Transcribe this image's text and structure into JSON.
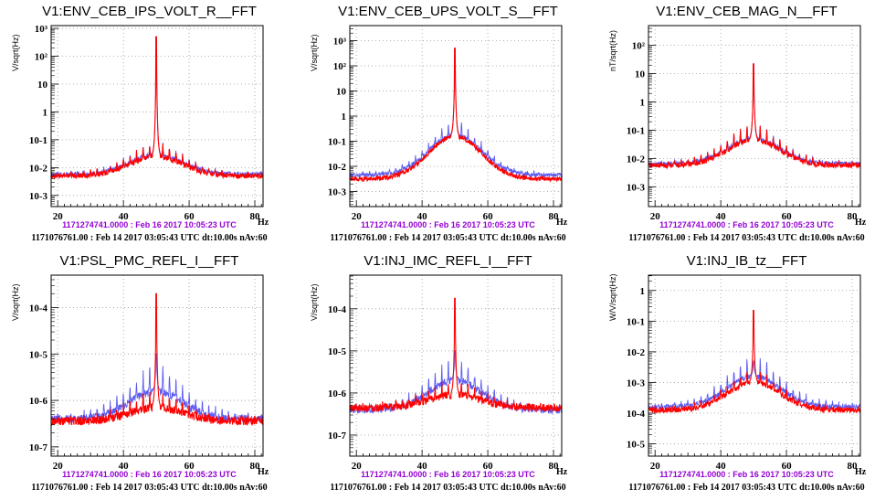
{
  "colors": {
    "reference": "#5b5bf0",
    "current": "#ff0000"
  },
  "common": {
    "reference_timestamp": "1171274741.0000 : Feb 16 2017 10:05:23 UTC",
    "current_timestamp": "1171076761.00 : Feb 14 2017 03:05:43 UTC dt:10.00s nAv:60",
    "x_unit": "Hz"
  },
  "chart_data": [
    {
      "type": "line",
      "title": "V1:ENV_CEB_IPS_VOLT_R__FFT",
      "ylabel": "V/sqrt(Hz)",
      "xlim": [
        18,
        82.5
      ],
      "ylog": true,
      "ylim_log10": [
        -3.4,
        3.1
      ],
      "yticks": [
        {
          "exp": -3,
          "label": "10-3"
        },
        {
          "exp": -2,
          "label": "10-2"
        },
        {
          "exp": -1,
          "label": "10-1"
        },
        {
          "exp": 0,
          "label": "1"
        },
        {
          "exp": 1,
          "label": "10"
        },
        {
          "exp": 2,
          "label": "10²"
        },
        {
          "exp": 3,
          "label": "10³"
        }
      ],
      "xticks": [
        20,
        40,
        60,
        80
      ],
      "grid": true,
      "series": [
        {
          "name": "reference",
          "color": "#5b5bf0",
          "peak_hz": 50,
          "peak_log10": 2.7,
          "floor_log10": -2.25,
          "bump_log10": 0.7,
          "comb_log10": 0.45
        },
        {
          "name": "current",
          "color": "#ff0000",
          "peak_hz": 50,
          "peak_log10": 2.7,
          "floor_log10": -2.3,
          "bump_log10": 0.7,
          "comb_log10": 0.5
        }
      ]
    },
    {
      "type": "line",
      "title": "V1:ENV_CEB_UPS_VOLT_S__FFT",
      "ylabel": "V/sqrt(Hz)",
      "xlim": [
        18,
        82.5
      ],
      "ylog": true,
      "ylim_log10": [
        -3.6,
        3.6
      ],
      "yticks": [
        {
          "exp": -3,
          "label": "10-3"
        },
        {
          "exp": -2,
          "label": "10-2"
        },
        {
          "exp": -1,
          "label": "10-1"
        },
        {
          "exp": 0,
          "label": "1"
        },
        {
          "exp": 1,
          "label": "10"
        },
        {
          "exp": 2,
          "label": "10²"
        },
        {
          "exp": 3,
          "label": "10³"
        }
      ],
      "xticks": [
        20,
        40,
        60,
        80
      ],
      "grid": true,
      "series": [
        {
          "name": "reference",
          "color": "#5b5bf0",
          "peak_hz": 50,
          "peak_log10": 2.7,
          "floor_log10": -2.35,
          "bump_log10": 1.6,
          "comb_log10": 0.55
        },
        {
          "name": "current",
          "color": "#ff0000",
          "peak_hz": 50,
          "peak_log10": 2.7,
          "floor_log10": -2.5,
          "bump_log10": 1.7,
          "comb_log10": 0.05
        }
      ]
    },
    {
      "type": "line",
      "title": "V1:ENV_CEB_MAG_N__FFT",
      "ylabel": "nT/sqrt(Hz)",
      "xlim": [
        18,
        82.5
      ],
      "ylog": true,
      "ylim_log10": [
        -3.7,
        2.7
      ],
      "yticks": [
        {
          "exp": -3,
          "label": "10-3"
        },
        {
          "exp": -2,
          "label": "10-2"
        },
        {
          "exp": -1,
          "label": "10-1"
        },
        {
          "exp": 0,
          "label": "1"
        },
        {
          "exp": 1,
          "label": "10"
        },
        {
          "exp": 2,
          "label": "10²"
        }
      ],
      "xticks": [
        20,
        40,
        60,
        80
      ],
      "grid": true,
      "series": [
        {
          "name": "reference",
          "color": "#5b5bf0",
          "peak_hz": 50,
          "peak_log10": 1.3,
          "floor_log10": -2.2,
          "bump_log10": 0.9,
          "comb_log10": 0.5
        },
        {
          "name": "current",
          "color": "#ff0000",
          "peak_hz": 50,
          "peak_log10": 1.35,
          "floor_log10": -2.25,
          "bump_log10": 0.9,
          "comb_log10": 0.6
        }
      ]
    },
    {
      "type": "line",
      "title": "V1:PSL_PMC_REFL_I__FFT",
      "ylabel": "V/sqrt(Hz)",
      "xlim": [
        18,
        82.5
      ],
      "ylog": true,
      "ylim_log10": [
        -7.2,
        -3.3
      ],
      "yticks": [
        {
          "exp": -7,
          "label": "10-7"
        },
        {
          "exp": -6,
          "label": "10-6"
        },
        {
          "exp": -5,
          "label": "10-5"
        },
        {
          "exp": -4,
          "label": "10-4"
        }
      ],
      "xticks": [
        20,
        40,
        60,
        80
      ],
      "grid": true,
      "series": [
        {
          "name": "reference",
          "color": "#5b5bf0",
          "peak_hz": 50,
          "peak_log10": -5.0,
          "floor_log10": -6.4,
          "bump_log10": 0.6,
          "comb_log10": 0.6
        },
        {
          "name": "current",
          "color": "#ff0000",
          "peak_hz": 50,
          "peak_log10": -3.7,
          "floor_log10": -6.45,
          "bump_log10": 0.3,
          "comb_log10": 0.35
        }
      ]
    },
    {
      "type": "line",
      "title": "V1:INJ_IMC_REFL_I__FFT",
      "ylabel": "V/sqrt(Hz)",
      "xlim": [
        18,
        82.5
      ],
      "ylog": true,
      "ylim_log10": [
        -7.5,
        -3.2
      ],
      "yticks": [
        {
          "exp": -7,
          "label": "10-7"
        },
        {
          "exp": -6,
          "label": "10-6"
        },
        {
          "exp": -5,
          "label": "10-5"
        },
        {
          "exp": -4,
          "label": "10-4"
        }
      ],
      "xticks": [
        20,
        40,
        60,
        80
      ],
      "grid": true,
      "series": [
        {
          "name": "reference",
          "color": "#5b5bf0",
          "peak_hz": 50,
          "peak_log10": -5.0,
          "floor_log10": -6.4,
          "bump_log10": 0.7,
          "comb_log10": 0.5
        },
        {
          "name": "current",
          "color": "#ff0000",
          "peak_hz": 50,
          "peak_log10": -3.75,
          "floor_log10": -6.35,
          "bump_log10": 0.3,
          "comb_log10": 0.35
        }
      ]
    },
    {
      "type": "line",
      "title": "V1:INJ_IB_tz__FFT",
      "ylabel": "W/V/sqrt(Hz)",
      "xlim": [
        18,
        82.5
      ],
      "ylog": true,
      "ylim_log10": [
        -5.4,
        0.5
      ],
      "yticks": [
        {
          "exp": -5,
          "label": "10-5"
        },
        {
          "exp": -4,
          "label": "10-4"
        },
        {
          "exp": -3,
          "label": "10-3"
        },
        {
          "exp": -2,
          "label": "10-2"
        },
        {
          "exp": -1,
          "label": "10-1"
        },
        {
          "exp": 0,
          "label": "1"
        }
      ],
      "xticks": [
        20,
        40,
        60,
        80
      ],
      "grid": true,
      "series": [
        {
          "name": "reference",
          "color": "#5b5bf0",
          "peak_hz": 50,
          "peak_log10": -2.3,
          "floor_log10": -3.8,
          "bump_log10": 1.0,
          "comb_log10": 0.7
        },
        {
          "name": "current",
          "color": "#ff0000",
          "peak_hz": 50,
          "peak_log10": -0.65,
          "floor_log10": -3.9,
          "bump_log10": 0.9,
          "comb_log10": 0.45
        }
      ]
    }
  ]
}
